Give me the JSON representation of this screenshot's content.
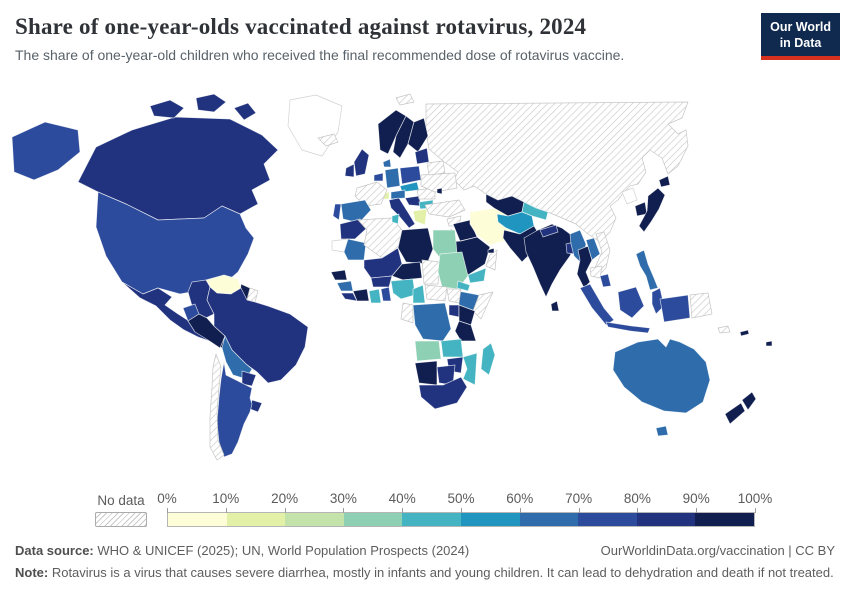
{
  "header": {
    "title": "Share of one-year-olds vaccinated against rotavirus, 2024",
    "subtitle": "The share of one-year-old children who received the final recommended dose of rotavirus vaccine.",
    "logo": {
      "line1": "Our World",
      "line2": "in Data",
      "bg_color": "#0f2a4e",
      "accent_color": "#d6301f"
    }
  },
  "footer": {
    "datasource_label": "Data source:",
    "datasource_text": " WHO & UNICEF (2025); UN, World Population Prospects (2024)",
    "rights_text": "OurWorldinData.org/vaccination | CC BY",
    "note_label": "Note:",
    "note_text": " Rotavirus is a virus that causes severe diarrhea, mostly in infants and young children. It can lead to dehydration and death if not treated."
  },
  "chart_data": {
    "type": "choropleth",
    "title": "Share of one-year-olds vaccinated against rotavirus, 2024",
    "unit": "%",
    "no_data_label": "No data",
    "tick_labels": [
      "0%",
      "10%",
      "20%",
      "30%",
      "40%",
      "50%",
      "60%",
      "70%",
      "80%",
      "90%",
      "100%"
    ],
    "legend_bins": [
      {
        "range": "0-10%",
        "color": "#fdfdd8"
      },
      {
        "range": "10-20%",
        "color": "#e3f1a8"
      },
      {
        "range": "20-30%",
        "color": "#c3e3ab"
      },
      {
        "range": "30-40%",
        "color": "#8ed0b4"
      },
      {
        "range": "40-50%",
        "color": "#45b4c2"
      },
      {
        "range": "50-60%",
        "color": "#2095bf"
      },
      {
        "range": "60-70%",
        "color": "#2e6cab"
      },
      {
        "range": "70-80%",
        "color": "#2d4b9c"
      },
      {
        "range": "80-90%",
        "color": "#21337f"
      },
      {
        "range": "90-100%",
        "color": "#101f4f"
      }
    ],
    "countries": {
      "Canada": "80-90%",
      "United States": "70-80%",
      "Mexico": "80-90%",
      "Guatemala": "90-100%",
      "Honduras": "90-100%",
      "Nicaragua": "90-100%",
      "Costa Rica": "90-100%",
      "Panama": "90-100%",
      "Cuba": "No data",
      "Jamaica": "90-100%",
      "Haiti": "40-50%",
      "Dominican Republic": "80-90%",
      "Venezuela": "0-10%",
      "Colombia": "80-90%",
      "Guyana": "90-100%",
      "Suriname": "No data",
      "Ecuador": "70-80%",
      "Peru": "90-100%",
      "Brazil": "80-90%",
      "Bolivia": "60-70%",
      "Paraguay": "80-90%",
      "Uruguay": "80-90%",
      "Argentina": "70-80%",
      "Chile": "No data",
      "Iceland": "No data",
      "Norway": "90-100%",
      "Sweden": "90-100%",
      "Finland": "90-100%",
      "Denmark": "60-70%",
      "United Kingdom": "80-90%",
      "Ireland": "80-90%",
      "Netherlands": "70-80%",
      "Belgium": "70-80%",
      "Germany": "60-70%",
      "Poland": "70-80%",
      "Czechia": "50-60%",
      "Slovakia": "50-60%",
      "Switzerland": "10-20%",
      "Austria": "60-70%",
      "France": "No data",
      "Spain": "60-70%",
      "Portugal": "70-80%",
      "Italy": "80-90%",
      "Serbia": "80-90%",
      "Bulgaria": "40-50%",
      "Greece": "10-20%",
      "Romania": "No data",
      "Ukraine": "No data",
      "Belarus": "No data",
      "Estonia": "80-90%",
      "Latvia": "80-90%",
      "Lithuania": "80-90%",
      "Moldova": "90-100%",
      "Russia": "No data",
      "Turkey": "No data",
      "Syria": "No data",
      "Iraq": "90-100%",
      "Iran": "0-10%",
      "Jordan": "90-100%",
      "Israel": "90-100%",
      "Saudi Arabia": "90-100%",
      "Yemen": "40-50%",
      "Oman": "No data",
      "United Arab Emirates": "90-100%",
      "Kazakhstan": "No data",
      "Turkmenistan": "90-100%",
      "Uzbekistan": "90-100%",
      "Kyrgyzstan": "40-50%",
      "Tajikistan": "40-50%",
      "Afghanistan": "50-60%",
      "Pakistan": "90-100%",
      "India": "90-100%",
      "Nepal": "80-90%",
      "Bangladesh": "80-90%",
      "Sri Lanka": "90-100%",
      "Myanmar": "60-70%",
      "Thailand": "90-100%",
      "Laos": "60-70%",
      "Cambodia": "No data",
      "Vietnam": "No data",
      "Malaysia": "70-80%",
      "Indonesia": "70-80%",
      "Philippines": "60-70%",
      "China": "No data",
      "Mongolia": "No data",
      "North Korea": "No data",
      "South Korea": "90-100%",
      "Japan": "90-100%",
      "Papua New Guinea": "No data",
      "Solomon Islands": "No data",
      "Fiji": "90-100%",
      "New Caledonia": "90-100%",
      "Australia": "60-70%",
      "New Zealand": "90-100%",
      "Morocco": "80-90%",
      "Algeria": "No data",
      "Tunisia": "40-50%",
      "Libya": "90-100%",
      "Egypt": "30-40%",
      "Western Sahara": "No data",
      "Mauritania": "60-70%",
      "Mali": "80-90%",
      "Niger": "90-100%",
      "Chad": "No data",
      "Sudan": "30-40%",
      "Eritrea": "40-50%",
      "Ethiopia": "60-70%",
      "Somalia": "No data",
      "Senegal": "90-100%",
      "Guinea": "60-70%",
      "Sierra Leone": "80-90%",
      "Liberia": "80-90%",
      "Cote d'Ivoire": "90-100%",
      "Ghana": "40-50%",
      "Burkina Faso": "80-90%",
      "Togo": "70-80%",
      "Benin": "70-80%",
      "Nigeria": "40-50%",
      "Cameroon": "40-50%",
      "Central African Republic": "No data",
      "South Sudan": "No data",
      "Uganda": "80-90%",
      "Kenya": "90-100%",
      "Congo": "No data",
      "Gabon": "No data",
      "DR Congo": "60-70%",
      "Tanzania": "90-100%",
      "Angola": "30-40%",
      "Zambia": "40-50%",
      "Malawi": "90-100%",
      "Mozambique": "40-50%",
      "Zimbabwe": "80-90%",
      "Namibia": "90-100%",
      "Botswana": "80-90%",
      "South Africa": "80-90%",
      "Madagascar": "40-50%",
      "Greenland": "No data"
    }
  }
}
